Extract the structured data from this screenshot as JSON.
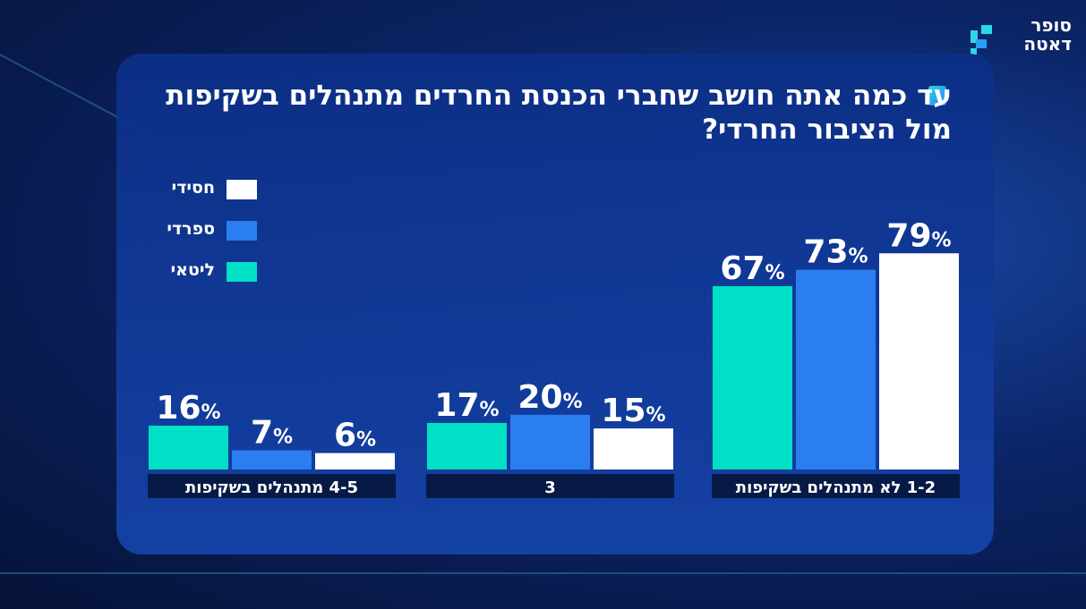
{
  "logo": {
    "text_line1": "סופר",
    "text_line2": "דאטה"
  },
  "chart_data": {
    "type": "bar",
    "title": "עד כמה אתה חושב שחברי הכנסת החרדים מתנהלים בשקיפות מול הציבור החרדי?",
    "categories": [
      "1-2 לא מתנהלים בשקיפות",
      "3",
      "4-5 מתנהלים בשקיפות"
    ],
    "series": [
      {
        "name": "ליטאי",
        "color": "#00e0c6",
        "values": [
          67,
          17,
          16
        ]
      },
      {
        "name": "ספרדי",
        "color": "#2a7ef0",
        "values": [
          73,
          20,
          7
        ]
      },
      {
        "name": "חסידי",
        "color": "#ffffff",
        "values": [
          79,
          15,
          6
        ]
      }
    ],
    "legend_order": [
      "חסידי",
      "ספרדי",
      "ליטאי"
    ],
    "legend_placement": "top-left",
    "value_suffix": "%",
    "ylim": [
      0,
      100
    ],
    "grid": false,
    "category_order": "right-to-left"
  }
}
